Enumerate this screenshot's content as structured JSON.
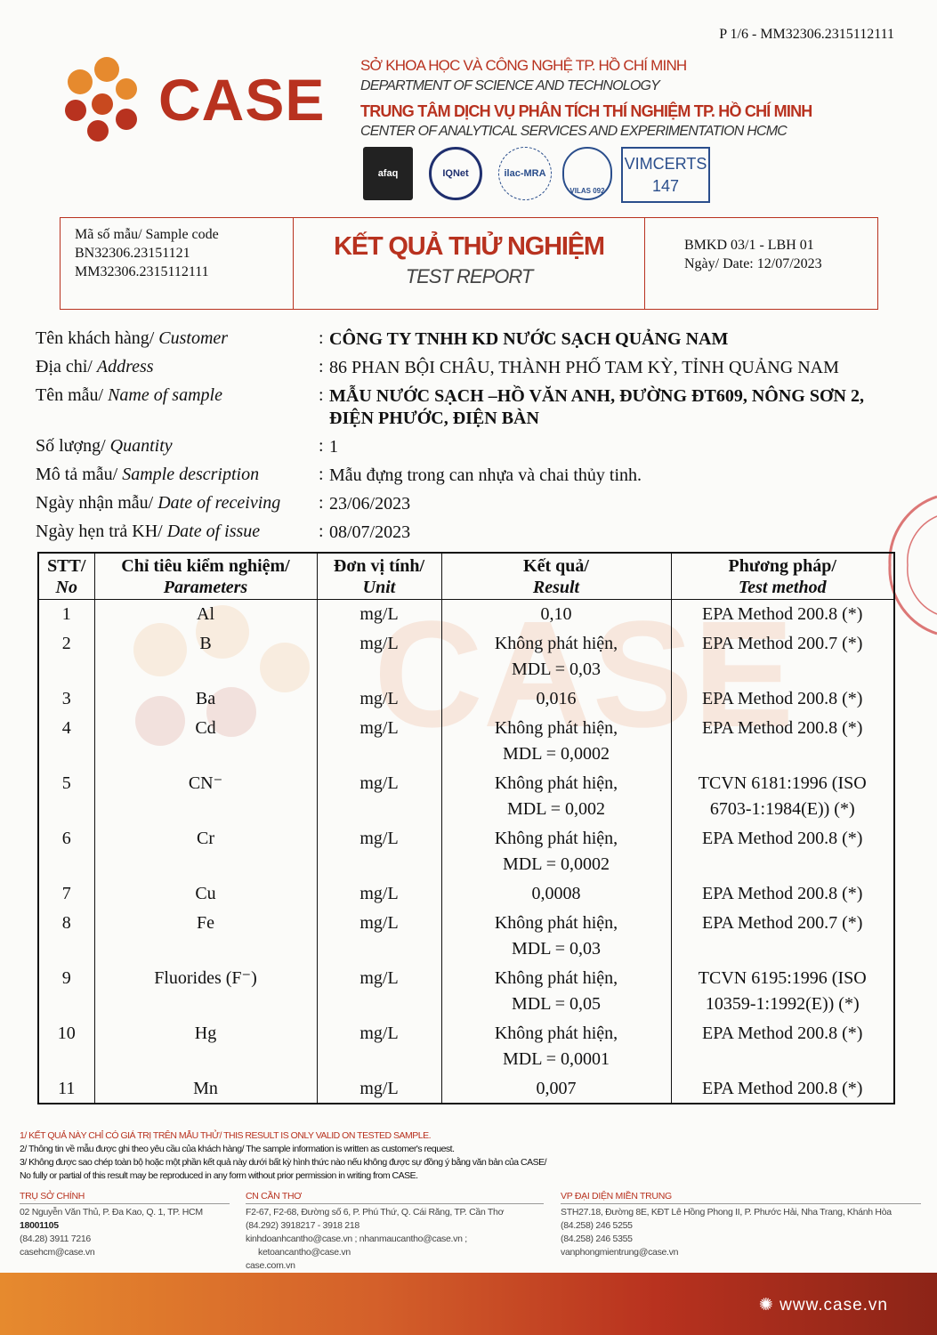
{
  "page_id": "P 1/6 - MM32306.2315112111",
  "logo": {
    "text": "CASE"
  },
  "org": {
    "line1": "SỞ KHOA HỌC VÀ CÔNG NGHỆ TP. HỒ CHÍ MINH",
    "line2": "DEPARTMENT OF SCIENCE AND TECHNOLOGY",
    "line3": "TRUNG TÂM DỊCH VỤ PHÂN TÍCH THÍ NGHIỆM TP. HỒ CHÍ MINH",
    "line4": "CENTER OF ANALYTICAL SERVICES AND EXPERIMENTATION HCMC"
  },
  "certs": {
    "afaq": "afaq",
    "iqnet": "IQNet",
    "ilac": "ilac-MRA",
    "vilas": "VILAS 092",
    "vimcerts": "VIMCERTS",
    "vimcerts_no": "147"
  },
  "header": {
    "sample_code_label": "Mã số mẫu/ Sample code",
    "code1": "BN32306.23151121",
    "code2": "MM32306.2315112111",
    "title_vn": "KẾT QUẢ THỬ NGHIỆM",
    "title_en": "TEST REPORT",
    "form": "BMKD 03/1 - LBH 01",
    "date": "Ngày/ Date: 12/07/2023"
  },
  "info": [
    {
      "label_vn": "Tên khách hàng/ ",
      "label_en": "Customer",
      "value": "CÔNG TY TNHH KD NƯỚC SẠCH QUẢNG NAM",
      "bold": true
    },
    {
      "label_vn": "Địa chỉ/ ",
      "label_en": "Address",
      "value": "86 PHAN BỘI CHÂU, THÀNH PHỐ TAM KỲ, TỈNH QUẢNG NAM",
      "bold": false
    },
    {
      "label_vn": "Tên mẫu/ ",
      "label_en": "Name of sample",
      "value": "MẪU NƯỚC SẠCH –HỒ VĂN ANH, ĐƯỜNG ĐT609, NÔNG SƠN 2, ĐIỆN PHƯỚC, ĐIỆN BÀN",
      "bold": true
    },
    {
      "label_vn": "Số lượng/ ",
      "label_en": "Quantity",
      "value": "1",
      "bold": false
    },
    {
      "label_vn": "Mô tả mẫu/ ",
      "label_en": "Sample description",
      "value": "Mẫu đựng trong can nhựa và chai thủy tinh.",
      "bold": false
    },
    {
      "label_vn": "Ngày nhận mẫu/ ",
      "label_en": "Date of receiving",
      "value": "23/06/2023",
      "bold": false
    },
    {
      "label_vn": "Ngày hẹn trả KH/ ",
      "label_en": "Date of issue",
      "value": "08/07/2023",
      "bold": false
    }
  ],
  "table": {
    "headers": [
      {
        "vn": "STT/",
        "en": "No"
      },
      {
        "vn": "Chỉ tiêu kiểm nghiệm/",
        "en": "Parameters"
      },
      {
        "vn": "Đơn vị tính/",
        "en": "Unit"
      },
      {
        "vn": "Kết quả/",
        "en": "Result"
      },
      {
        "vn": "Phương pháp/",
        "en": "Test method"
      }
    ],
    "rows": [
      {
        "no": "1",
        "param": "Al",
        "unit": "mg/L",
        "result": "0,10",
        "result2": "",
        "method": "EPA Method 200.8 (*)",
        "method2": ""
      },
      {
        "no": "2",
        "param": "B",
        "unit": "mg/L",
        "result": "Không phát hiện,",
        "result2": "MDL = 0,03",
        "method": "EPA Method 200.7 (*)",
        "method2": ""
      },
      {
        "no": "3",
        "param": "Ba",
        "unit": "mg/L",
        "result": "0,016",
        "result2": "",
        "method": "EPA Method 200.8 (*)",
        "method2": ""
      },
      {
        "no": "4",
        "param": "Cd",
        "unit": "mg/L",
        "result": "Không phát hiện,",
        "result2": "MDL = 0,0002",
        "method": "EPA Method 200.8 (*)",
        "method2": ""
      },
      {
        "no": "5",
        "param": "CN⁻",
        "unit": "mg/L",
        "result": "Không phát hiện,",
        "result2": "MDL = 0,002",
        "method": "TCVN 6181:1996 (ISO",
        "method2": "6703-1:1984(E)) (*)"
      },
      {
        "no": "6",
        "param": "Cr",
        "unit": "mg/L",
        "result": "Không phát hiện,",
        "result2": "MDL = 0,0002",
        "method": "EPA Method 200.8 (*)",
        "method2": ""
      },
      {
        "no": "7",
        "param": "Cu",
        "unit": "mg/L",
        "result": "0,0008",
        "result2": "",
        "method": "EPA Method 200.8 (*)",
        "method2": ""
      },
      {
        "no": "8",
        "param": "Fe",
        "unit": "mg/L",
        "result": "Không phát hiện,",
        "result2": "MDL = 0,03",
        "method": "EPA Method 200.7 (*)",
        "method2": ""
      },
      {
        "no": "9",
        "param": "Fluorides (F⁻)",
        "unit": "mg/L",
        "result": "Không phát hiện,",
        "result2": "MDL = 0,05",
        "method": "TCVN 6195:1996 (ISO",
        "method2": "10359-1:1992(E)) (*)"
      },
      {
        "no": "10",
        "param": "Hg",
        "unit": "mg/L",
        "result": "Không phát hiện,",
        "result2": "MDL = 0,0001",
        "method": "EPA Method 200.8 (*)",
        "method2": ""
      },
      {
        "no": "11",
        "param": "Mn",
        "unit": "mg/L",
        "result": "0,007",
        "result2": "",
        "method": "EPA Method 200.8 (*)",
        "method2": ""
      }
    ]
  },
  "notes": [
    "1/ KẾT QUẢ NÀY CHỈ CÓ GIÁ TRỊ TRÊN MẪU THỬ/ THIS RESULT IS ONLY VALID ON TESTED SAMPLE.",
    "2/ Thông tin về mẫu được ghi theo yêu cầu của khách hàng/ The sample information is written as customer's request.",
    "3/ Không được sao chép toàn bộ hoặc một phần kết quả này dưới bất kỳ hình thức nào nếu không được sự đồng ý bằng văn bản của CASE/",
    "No fully or partial of this result may be reproduced in any form without prior permission in writing from CASE."
  ],
  "offices": [
    {
      "title": "TRỤ SỞ CHÍNH",
      "lines": [
        "02 Nguyễn Văn Thủ, P. Đa Kao, Q. 1, TP. HCM",
        "18001105",
        "(84.28) 3911 7216",
        "casehcm@case.vn"
      ]
    },
    {
      "title": "CN CẦN THƠ",
      "lines": [
        "F2-67, F2-68, Đường số 6, P. Phú Thứ, Q. Cái Răng, TP. Cần Thơ",
        "(84.292) 3918217 - 3918 218",
        "kinhdoanhcantho@case.vn ; nhanmaucantho@case.vn ;",
        "ketoancantho@case.vn",
        "case.com.vn"
      ]
    },
    {
      "title": "VP ĐẠI DIỆN MIỀN TRUNG",
      "lines": [
        "STH27.18, Đường 8E, KĐT Lê Hồng Phong II, P. Phước Hải, Nha Trang, Khánh Hòa",
        "(84.258) 246 5255",
        "(84.258) 246 5355",
        "vanphongmientrung@case.vn"
      ]
    }
  ],
  "website": "www.case.vn",
  "colors": {
    "brand": "#b8321f",
    "accent": "#e68a2e"
  }
}
